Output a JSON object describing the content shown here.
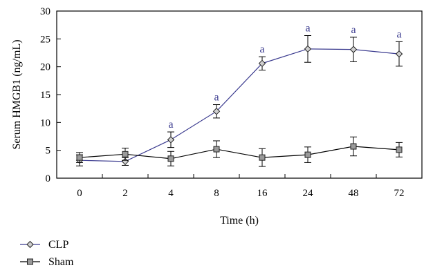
{
  "chart_data": {
    "type": "line",
    "categories": [
      "0",
      "2",
      "4",
      "8",
      "16",
      "24",
      "48",
      "72"
    ],
    "xlabel": "Time (h)",
    "ylabel": "Serum HMGB1 (ng/mL)",
    "ylim": [
      0,
      30
    ],
    "yticks": [
      0,
      5,
      10,
      15,
      20,
      25,
      30
    ],
    "grid": false,
    "legend_position": "bottom-left",
    "series": [
      {
        "name": "CLP",
        "color": "#3b3b8f",
        "marker": "diamond",
        "values": [
          3.2,
          3.0,
          6.9,
          12.0,
          20.6,
          23.2,
          23.1,
          22.3
        ],
        "errors": [
          1.0,
          0.7,
          1.4,
          1.2,
          1.2,
          2.4,
          2.2,
          2.2
        ]
      },
      {
        "name": "Sham",
        "color": "#000000",
        "marker": "square",
        "values": [
          3.7,
          4.3,
          3.5,
          5.2,
          3.7,
          4.2,
          5.7,
          5.1
        ],
        "errors": [
          0.9,
          1.1,
          1.3,
          1.5,
          1.6,
          1.4,
          1.7,
          1.3
        ]
      }
    ],
    "annotations": [
      {
        "category_index": 2,
        "text": "a"
      },
      {
        "category_index": 3,
        "text": "a"
      },
      {
        "category_index": 4,
        "text": "a"
      },
      {
        "category_index": 5,
        "text": "a"
      },
      {
        "category_index": 6,
        "text": "a"
      },
      {
        "category_index": 7,
        "text": "a"
      }
    ],
    "annotation_color": "#3b3b8f"
  }
}
